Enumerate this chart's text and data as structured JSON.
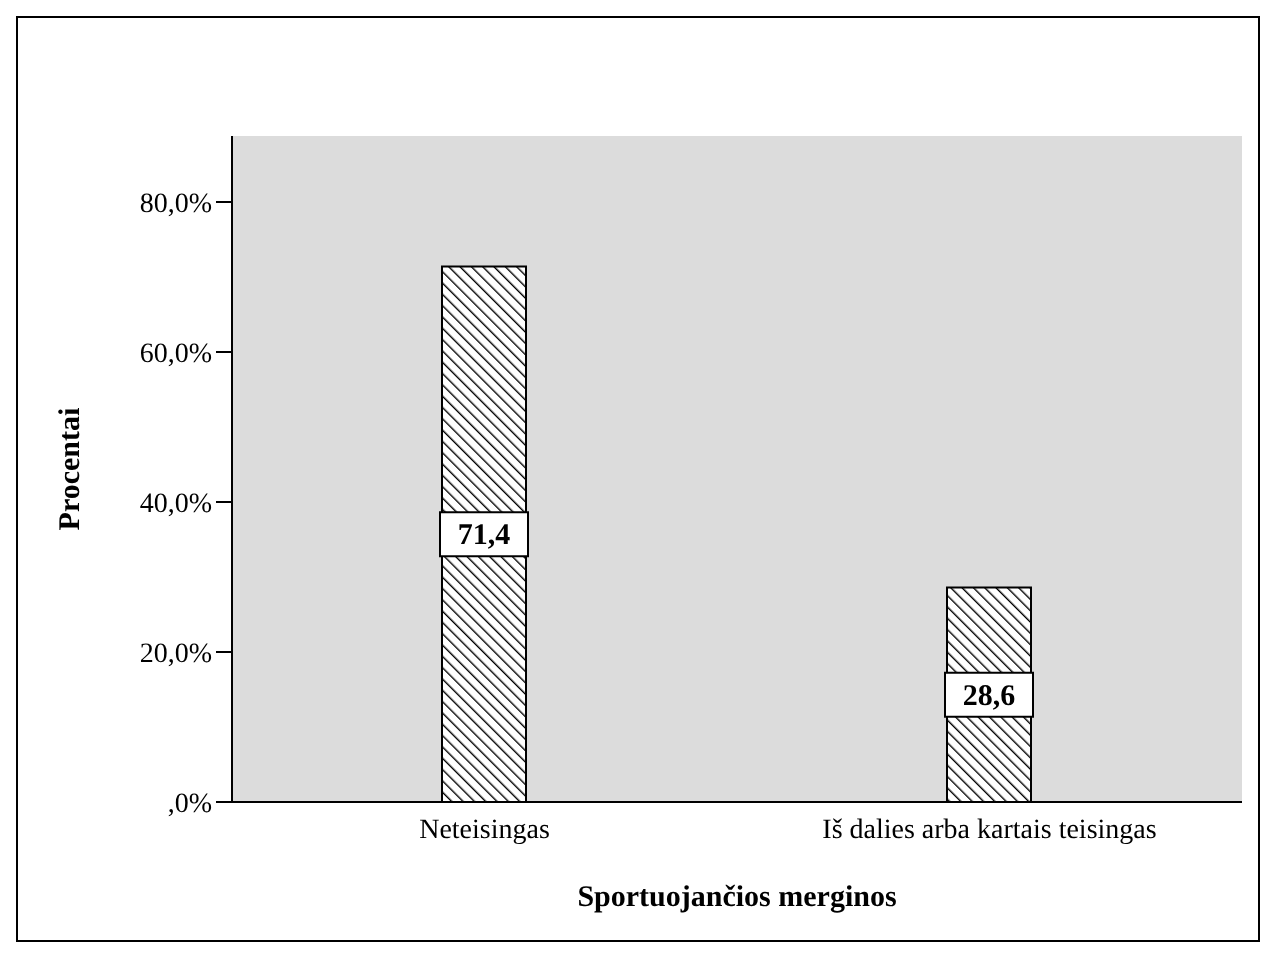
{
  "chart_data": {
    "type": "bar",
    "xlabel": "Sportuojančios merginos",
    "ylabel": "Procentai",
    "categories": [
      "Neteisingas",
      "Iš dalies arba kartais teisingas"
    ],
    "values": [
      71.4,
      28.6
    ],
    "value_labels": [
      "71,4",
      "28,6"
    ],
    "color": "#000000",
    "ylim": [
      0,
      88.8
    ],
    "yticks": [
      {
        "value": 0,
        "label": ",0%"
      },
      {
        "value": 20,
        "label": "20,0%"
      },
      {
        "value": 40,
        "label": "40,0%"
      },
      {
        "value": 60,
        "label": "60,0%"
      },
      {
        "value": 80,
        "label": "80,0%"
      }
    ],
    "grid": false
  }
}
